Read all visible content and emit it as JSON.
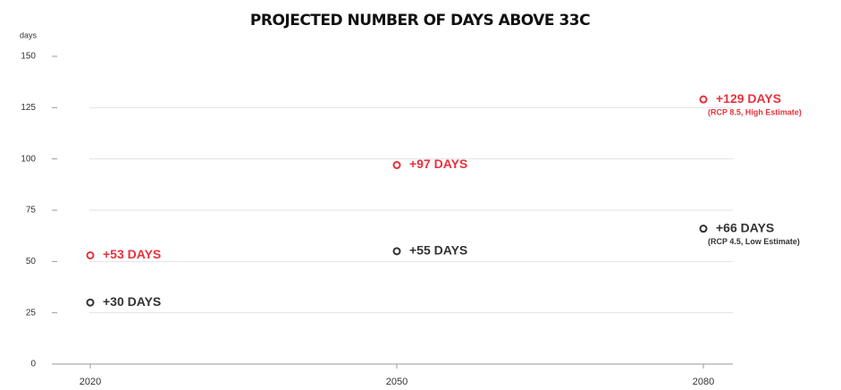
{
  "chart_data": {
    "type": "scatter",
    "title": "PROJECTED NUMBER OF DAYS ABOVE 33C",
    "y_label": "days",
    "categories": [
      "2020",
      "2050",
      "2080"
    ],
    "series": [
      {
        "name": "(RCP 8.5, High Estimate)",
        "color": "#e8323c",
        "values": [
          53,
          97,
          129
        ],
        "value_labels": [
          "+53 DAYS",
          "+97 DAYS",
          "+129 DAYS"
        ]
      },
      {
        "name": "(RCP 4.5, Low Estimate)",
        "color": "#333333",
        "values": [
          30,
          55,
          66
        ],
        "value_labels": [
          "+30 DAYS",
          "+55 DAYS",
          "+66 DAYS"
        ]
      }
    ],
    "ylim": [
      0,
      150
    ],
    "yticks": [
      0,
      25,
      50,
      75,
      100,
      125,
      150
    ],
    "grid": true
  }
}
